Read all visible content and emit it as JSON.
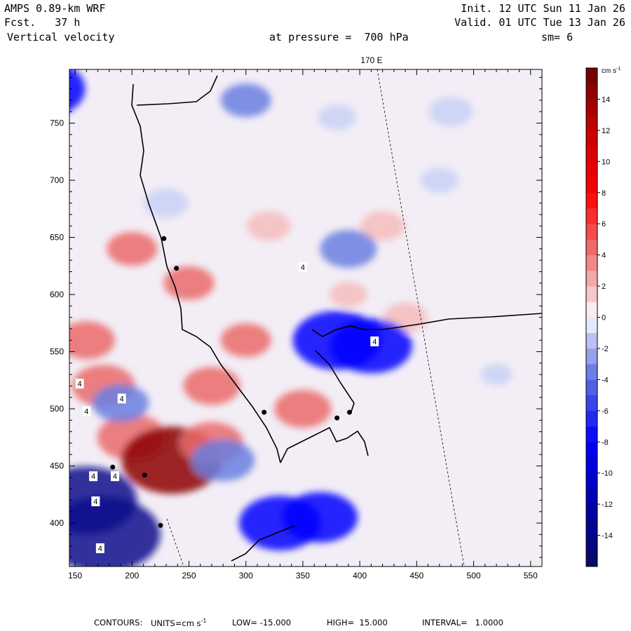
{
  "header": {
    "model": "AMPS 0.89-km WRF",
    "fcst_label": "Fcst.",
    "fcst_value": "37 h",
    "field": "Vertical velocity",
    "init": "Init. 12 UTC Sun 11 Jan 26",
    "valid": "Valid. 01 UTC Tue 13 Jan 26",
    "pressure_label": "at pressure =",
    "pressure_value": "700 hPa",
    "smoothing": "sm= 6"
  },
  "colors": {
    "negative_max": "#0a0a8c",
    "negative_strong": "#0000ff",
    "negative_mid": "#6a7fe0",
    "negative_light": "#c8d0f4",
    "near_zero": "#fbeeee",
    "positive_light": "#f4bcbc",
    "positive_mid": "#ea6a6a",
    "positive_strong": "#ff0000",
    "positive_max": "#8c0000"
  },
  "chart_data": {
    "type": "heatmap",
    "title": "Vertical velocity",
    "xlim": [
      145,
      560
    ],
    "ylim": [
      362,
      797
    ],
    "x_ticks": [
      150,
      200,
      250,
      300,
      350,
      400,
      450,
      500,
      550
    ],
    "y_ticks": [
      400,
      450,
      500,
      550,
      600,
      650,
      700,
      750
    ],
    "top_label": "170 E",
    "colorbar": {
      "unit_label": "cm s",
      "unit_exp": "-1",
      "min": -16,
      "max": 16,
      "step": 1,
      "tick_values": [
        14,
        12,
        10,
        8,
        6,
        4,
        2,
        0,
        -2,
        -4,
        -6,
        -8,
        -10,
        -12,
        -14
      ]
    },
    "field_blobs": [
      {
        "x": 200,
        "y": 475,
        "value": 7
      },
      {
        "x": 235,
        "y": 455,
        "value": 12
      },
      {
        "x": 270,
        "y": 470,
        "value": 6
      },
      {
        "x": 175,
        "y": 520,
        "value": 6
      },
      {
        "x": 160,
        "y": 560,
        "value": 5
      },
      {
        "x": 300,
        "y": 560,
        "value": 4
      },
      {
        "x": 350,
        "y": 500,
        "value": 5
      },
      {
        "x": 250,
        "y": 610,
        "value": 4
      },
      {
        "x": 200,
        "y": 640,
        "value": 4
      },
      {
        "x": 320,
        "y": 660,
        "value": 3
      },
      {
        "x": 420,
        "y": 660,
        "value": 3
      },
      {
        "x": 440,
        "y": 580,
        "value": 3
      },
      {
        "x": 270,
        "y": 520,
        "value": 5
      },
      {
        "x": 390,
        "y": 600,
        "value": 2
      },
      {
        "x": 160,
        "y": 420,
        "value": -12
      },
      {
        "x": 175,
        "y": 390,
        "value": -14
      },
      {
        "x": 120,
        "y": 780,
        "value": -10
      },
      {
        "x": 300,
        "y": 770,
        "value": -4
      },
      {
        "x": 480,
        "y": 760,
        "value": -3
      },
      {
        "x": 380,
        "y": 755,
        "value": -2
      },
      {
        "x": 390,
        "y": 640,
        "value": -5
      },
      {
        "x": 380,
        "y": 560,
        "value": -10
      },
      {
        "x": 410,
        "y": 555,
        "value": -9
      },
      {
        "x": 330,
        "y": 400,
        "value": -9
      },
      {
        "x": 365,
        "y": 405,
        "value": -8
      },
      {
        "x": 280,
        "y": 455,
        "value": -6
      },
      {
        "x": 190,
        "y": 505,
        "value": -5
      },
      {
        "x": 470,
        "y": 700,
        "value": -2
      },
      {
        "x": 520,
        "y": 530,
        "value": -1
      },
      {
        "x": 230,
        "y": 680,
        "value": -3
      }
    ],
    "labels": [
      {
        "text": "4",
        "x": 350,
        "y": 624
      },
      {
        "text": "4",
        "x": 413,
        "y": 559
      },
      {
        "text": "4",
        "x": 154,
        "y": 522
      },
      {
        "text": "4",
        "x": 191,
        "y": 509
      },
      {
        "text": "4",
        "x": 160,
        "y": 498
      },
      {
        "text": "4",
        "x": 185,
        "y": 441
      },
      {
        "text": "4",
        "x": 166,
        "y": 441
      },
      {
        "text": "4",
        "x": 168,
        "y": 419
      },
      {
        "text": "4",
        "x": 172,
        "y": 378
      }
    ],
    "stations": [
      {
        "x": 228,
        "y": 649
      },
      {
        "x": 239,
        "y": 623
      },
      {
        "x": 316,
        "y": 497
      },
      {
        "x": 391,
        "y": 497
      },
      {
        "x": 380,
        "y": 492
      },
      {
        "x": 183,
        "y": 449
      },
      {
        "x": 211,
        "y": 442
      },
      {
        "x": 225,
        "y": 398
      }
    ]
  },
  "footer": {
    "contours_label": "CONTOURS:",
    "units_label": "UNITS=cm s",
    "units_exp": "-1",
    "low": "LOW= -15.000",
    "high": "HIGH=  15.000",
    "interval": "INTERVAL=   1.0000"
  }
}
